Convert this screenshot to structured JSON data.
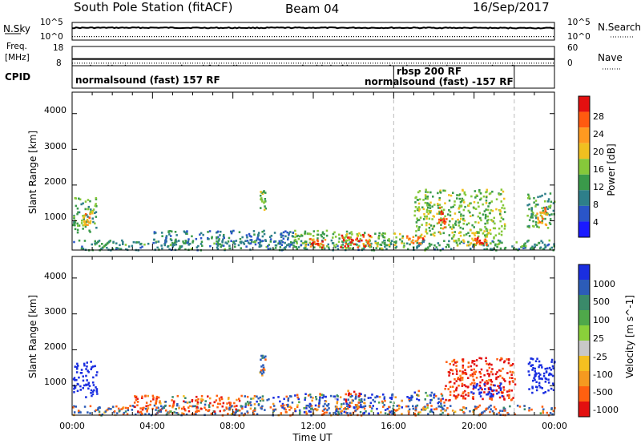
{
  "header": {
    "station": "South Pole Station (fitACF)",
    "beam": "Beam 04",
    "date": "16/Sep/2017"
  },
  "top_panels": {
    "nsky_label": "N.Sky",
    "nsky_ticks": [
      "10^5",
      "10^0"
    ],
    "nsearch_label": "N.Search",
    "nsearch_ticks": [
      "10^5",
      "10^0"
    ],
    "freq_label_1": "Freq.",
    "freq_label_2": "[MHz]",
    "freq_ticks": [
      "18",
      "8"
    ],
    "nave_label": "Nave",
    "nave_ticks": [
      "60",
      "0"
    ],
    "cpid_label": "CPID",
    "cpid_segments": [
      {
        "label": "normalsound (fast) 157 RF",
        "start_hour": 0,
        "end_hour": 16
      },
      {
        "label": "rbsp 200 RF",
        "start_hour": 16,
        "end_hour": 22
      },
      {
        "label": "normalsound (fast) -157 RF",
        "start_hour": 16,
        "end_hour": 22
      }
    ]
  },
  "axes": {
    "ylabel": "Slant Range [km]",
    "xlabel": "Time UT",
    "y_ticks": [
      "1000",
      "2000",
      "3000",
      "4000"
    ],
    "x_ticks": [
      "00:00",
      "04:00",
      "08:00",
      "12:00",
      "16:00",
      "20:00",
      "00:00"
    ]
  },
  "colorbars": {
    "power": {
      "label": "Power [dB]",
      "tick_labels": [
        "4",
        "8",
        "12",
        "16",
        "20",
        "24",
        "28"
      ],
      "colors": [
        "#1a1aff",
        "#2a55c8",
        "#2e7f8a",
        "#3a9a4a",
        "#86c83a",
        "#f0c020",
        "#ff9a20",
        "#ff5a10",
        "#e31010"
      ]
    },
    "velocity": {
      "label": "Velocity [m s^-1]",
      "tick_labels": [
        "1000",
        "500",
        "100",
        "25",
        "-25",
        "-100",
        "-500",
        "-1000"
      ],
      "colors": [
        "#1a2ee0",
        "#2c5cb8",
        "#3a8a6a",
        "#4fa84a",
        "#8ad03a",
        "#c8c8c8",
        "#f5c020",
        "#f59a20",
        "#ff6010",
        "#e31010"
      ]
    }
  },
  "chart_data": [
    {
      "type": "line",
      "title": "South Pole Station (fitACF)",
      "series": [
        {
          "name": "N.Sky",
          "x": [
            0,
            4,
            8,
            12,
            16,
            20,
            24
          ],
          "values": [
            3000,
            3200,
            2900,
            3100,
            3000,
            2800,
            2500
          ]
        },
        {
          "name": "N.Search",
          "x": [
            0,
            4,
            8,
            12,
            16,
            20,
            24
          ],
          "values": [
            10,
            10,
            10,
            10,
            10,
            10,
            10
          ]
        },
        {
          "name": "Freq. [MHz]",
          "x": [
            0,
            4,
            8,
            12,
            16,
            20,
            24
          ],
          "values": [
            11.5,
            11.5,
            11.5,
            11.5,
            11.5,
            11.5,
            11.5
          ]
        },
        {
          "name": "Nave",
          "x": [
            0,
            4,
            8,
            12,
            16,
            20,
            24
          ],
          "values": [
            8,
            8,
            8,
            8,
            8,
            8,
            8
          ]
        }
      ],
      "xlabel": "Time UT",
      "xlim": [
        0,
        24
      ]
    },
    {
      "type": "heatmap",
      "title": "Power [dB]",
      "xlabel": "Time UT",
      "ylabel": "Slant Range [km]",
      "xlim": [
        0,
        24
      ],
      "ylim": [
        180,
        4600
      ],
      "clim": [
        0,
        30
      ],
      "patches": [
        {
          "t0": 0.0,
          "t1": 1.2,
          "r0": 700,
          "r1": 1700,
          "value": 12
        },
        {
          "t0": 0.5,
          "t1": 1.0,
          "r0": 900,
          "r1": 1300,
          "value": 20
        },
        {
          "t0": 0.0,
          "t1": 24.0,
          "r0": 200,
          "r1": 480,
          "value": 10
        },
        {
          "t0": 4.0,
          "t1": 11.0,
          "r0": 300,
          "r1": 750,
          "value": 8
        },
        {
          "t0": 9.3,
          "t1": 9.6,
          "r0": 1300,
          "r1": 1900,
          "value": 14
        },
        {
          "t0": 11.0,
          "t1": 16.5,
          "r0": 250,
          "r1": 750,
          "value": 14
        },
        {
          "t0": 11.8,
          "t1": 12.6,
          "r0": 280,
          "r1": 520,
          "value": 26
        },
        {
          "t0": 13.3,
          "t1": 14.8,
          "r0": 280,
          "r1": 650,
          "value": 28
        },
        {
          "t0": 16.6,
          "t1": 17.5,
          "r0": 300,
          "r1": 600,
          "value": 24
        },
        {
          "t0": 17.0,
          "t1": 21.5,
          "r0": 600,
          "r1": 1900,
          "value": 14
        },
        {
          "t0": 18.2,
          "t1": 18.6,
          "r0": 700,
          "r1": 1400,
          "value": 26
        },
        {
          "t0": 18.8,
          "t1": 21.0,
          "r0": 300,
          "r1": 700,
          "value": 16
        },
        {
          "t0": 20.0,
          "t1": 20.6,
          "r0": 350,
          "r1": 550,
          "value": 26
        },
        {
          "t0": 22.6,
          "t1": 24.0,
          "r0": 800,
          "r1": 1800,
          "value": 12
        },
        {
          "t0": 23.0,
          "t1": 23.6,
          "r0": 900,
          "r1": 1400,
          "value": 22
        }
      ]
    },
    {
      "type": "heatmap",
      "title": "Velocity [m s^-1]",
      "xlabel": "Time UT",
      "ylabel": "Slant Range [km]",
      "xlim": [
        0,
        24
      ],
      "ylim": [
        180,
        4600
      ],
      "clim": [
        -1000,
        1000
      ],
      "patches": [
        {
          "t0": 0.0,
          "t1": 1.2,
          "r0": 700,
          "r1": 1700,
          "value": 700
        },
        {
          "t0": 0.0,
          "t1": 24.0,
          "r0": 200,
          "r1": 480,
          "value": 0
        },
        {
          "t0": 3.0,
          "t1": 8.5,
          "r0": 300,
          "r1": 750,
          "value": -150
        },
        {
          "t0": 8.5,
          "t1": 11.0,
          "r0": 300,
          "r1": 750,
          "value": 80
        },
        {
          "t0": 9.3,
          "t1": 9.6,
          "r0": 1300,
          "r1": 1900,
          "value": 60
        },
        {
          "t0": 11.0,
          "t1": 16.5,
          "r0": 250,
          "r1": 800,
          "value": 150
        },
        {
          "t0": 13.5,
          "t1": 14.3,
          "r0": 400,
          "r1": 900,
          "value": -200
        },
        {
          "t0": 16.6,
          "t1": 18.5,
          "r0": 300,
          "r1": 900,
          "value": 50
        },
        {
          "t0": 18.5,
          "t1": 22.0,
          "r0": 600,
          "r1": 1800,
          "value": -300
        },
        {
          "t0": 19.8,
          "t1": 21.4,
          "r0": 700,
          "r1": 1100,
          "value": 900
        },
        {
          "t0": 22.6,
          "t1": 24.0,
          "r0": 800,
          "r1": 1800,
          "value": 600
        }
      ]
    }
  ]
}
